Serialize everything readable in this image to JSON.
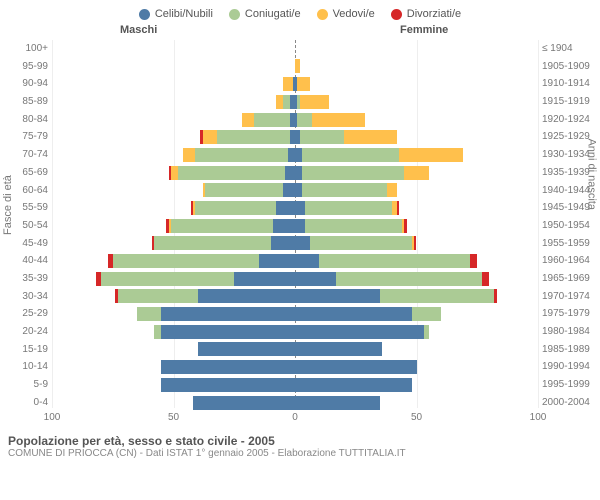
{
  "chart": {
    "type": "population-pyramid",
    "title": "Popolazione per età, sesso e stato civile - 2005",
    "subtitle": "COMUNE DI PRIOCCA (CN) - Dati ISTAT 1° gennaio 2005 - Elaborazione TUTTITALIA.IT",
    "legend": [
      {
        "label": "Celibi/Nubili",
        "color": "#4f7ba6"
      },
      {
        "label": "Coniugati/e",
        "color": "#abcb95"
      },
      {
        "label": "Vedovi/e",
        "color": "#ffc04c"
      },
      {
        "label": "Divorziati/e",
        "color": "#d62728"
      }
    ],
    "header_male": "Maschi",
    "header_female": "Femmine",
    "y_axis_left_title": "Fasce di età",
    "y_axis_right_title": "Anni di nascita",
    "xlim": 100,
    "x_ticks": [
      100,
      50,
      0,
      50,
      100
    ],
    "background_color": "#ffffff",
    "grid_color": "#eeeeee",
    "axis_dash_color": "#888888",
    "text_color": "#777777",
    "ages": [
      "100+",
      "95-99",
      "90-94",
      "85-89",
      "80-84",
      "75-79",
      "70-74",
      "65-69",
      "60-64",
      "55-59",
      "50-54",
      "45-49",
      "40-44",
      "35-39",
      "30-34",
      "25-29",
      "20-24",
      "15-19",
      "10-14",
      "5-9",
      "0-4"
    ],
    "years": [
      "≤ 1904",
      "1905-1909",
      "1910-1914",
      "1915-1919",
      "1920-1924",
      "1925-1929",
      "1930-1934",
      "1935-1939",
      "1940-1944",
      "1945-1949",
      "1950-1954",
      "1955-1959",
      "1960-1964",
      "1965-1969",
      "1970-1974",
      "1975-1979",
      "1980-1984",
      "1985-1989",
      "1990-1994",
      "1995-1999",
      "2000-2004"
    ],
    "male": [
      [
        0,
        0,
        0,
        0
      ],
      [
        0,
        0,
        0,
        0
      ],
      [
        1,
        0,
        4,
        0
      ],
      [
        2,
        3,
        3,
        0
      ],
      [
        2,
        15,
        5,
        0
      ],
      [
        2,
        30,
        6,
        1
      ],
      [
        3,
        38,
        5,
        0
      ],
      [
        4,
        44,
        3,
        1
      ],
      [
        5,
        32,
        1,
        0
      ],
      [
        8,
        33,
        1,
        1
      ],
      [
        9,
        42,
        1,
        1
      ],
      [
        10,
        48,
        0,
        1
      ],
      [
        15,
        60,
        0,
        2
      ],
      [
        25,
        55,
        0,
        2
      ],
      [
        40,
        33,
        0,
        1
      ],
      [
        55,
        10,
        0,
        0
      ],
      [
        55,
        3,
        0,
        0
      ],
      [
        40,
        0,
        0,
        0
      ],
      [
        55,
        0,
        0,
        0
      ],
      [
        55,
        0,
        0,
        0
      ],
      [
        42,
        0,
        0,
        0
      ]
    ],
    "female": [
      [
        0,
        0,
        0,
        0
      ],
      [
        0,
        0,
        2,
        0
      ],
      [
        1,
        0,
        5,
        0
      ],
      [
        1,
        1,
        12,
        0
      ],
      [
        1,
        6,
        22,
        0
      ],
      [
        2,
        18,
        22,
        0
      ],
      [
        3,
        40,
        26,
        0
      ],
      [
        3,
        42,
        10,
        0
      ],
      [
        3,
        35,
        4,
        0
      ],
      [
        4,
        36,
        2,
        1
      ],
      [
        4,
        40,
        1,
        1
      ],
      [
        6,
        42,
        1,
        1
      ],
      [
        10,
        62,
        0,
        3
      ],
      [
        17,
        60,
        0,
        3
      ],
      [
        35,
        47,
        0,
        1
      ],
      [
        48,
        12,
        0,
        0
      ],
      [
        53,
        2,
        0,
        0
      ],
      [
        36,
        0,
        0,
        0
      ],
      [
        50,
        0,
        0,
        0
      ],
      [
        48,
        0,
        0,
        0
      ],
      [
        35,
        0,
        0,
        0
      ]
    ]
  }
}
